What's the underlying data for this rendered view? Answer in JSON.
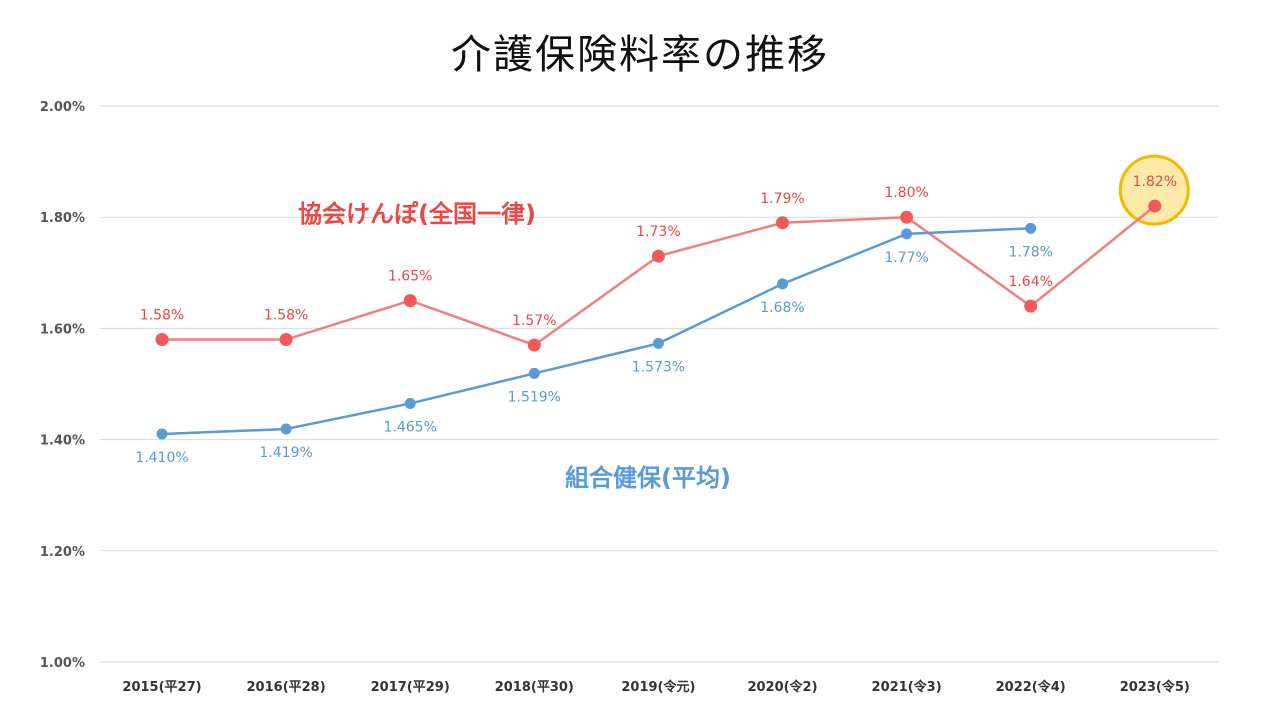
{
  "chart_data": {
    "type": "line",
    "title": "介護保険料率の推移",
    "categories": [
      "2015(平27)",
      "2016(平28)",
      "2017(平29)",
      "2018(平30)",
      "2019(令元)",
      "2020(令2)",
      "2021(令3)",
      "2022(令4)",
      "2023(令5)"
    ],
    "ylim": [
      1.0,
      2.0
    ],
    "yticks": [
      "1.00%",
      "1.20%",
      "1.40%",
      "1.60%",
      "1.80%",
      "2.00%"
    ],
    "ytick_values": [
      1.0,
      1.2,
      1.4,
      1.6,
      1.8,
      2.0
    ],
    "grid": true,
    "series": [
      {
        "name": "協会けんぽ(全国一律)",
        "color": "#f08080",
        "marker_color": "#f25a5a",
        "label_color": "#e84848",
        "values": [
          1.58,
          1.58,
          1.65,
          1.57,
          1.73,
          1.79,
          1.8,
          1.64,
          1.82
        ],
        "labels": [
          "1.58%",
          "1.58%",
          "1.65%",
          "1.57%",
          "1.73%",
          "1.79%",
          "1.80%",
          "1.64%",
          "1.82%"
        ],
        "label_pos": [
          "above",
          "above",
          "above",
          "above",
          "above",
          "above",
          "above",
          "above",
          "above"
        ]
      },
      {
        "name": "組合健保(平均)",
        "color": "#5b9bd5",
        "marker_color": "#5b9bd5",
        "label_color": "#5b9bd5",
        "values": [
          1.41,
          1.419,
          1.465,
          1.519,
          1.573,
          1.68,
          1.77,
          1.78,
          null
        ],
        "labels": [
          "1.410%",
          "1.419%",
          "1.465%",
          "1.519%",
          "1.573%",
          "1.68%",
          "1.77%",
          "1.78%",
          null
        ],
        "label_pos": [
          "below",
          "below",
          "below",
          "below",
          "below",
          "below",
          "below",
          "below",
          null
        ]
      }
    ],
    "highlight": {
      "series": 0,
      "index": 8,
      "fill": "#fde9a8",
      "stroke": "#f5b800"
    }
  }
}
